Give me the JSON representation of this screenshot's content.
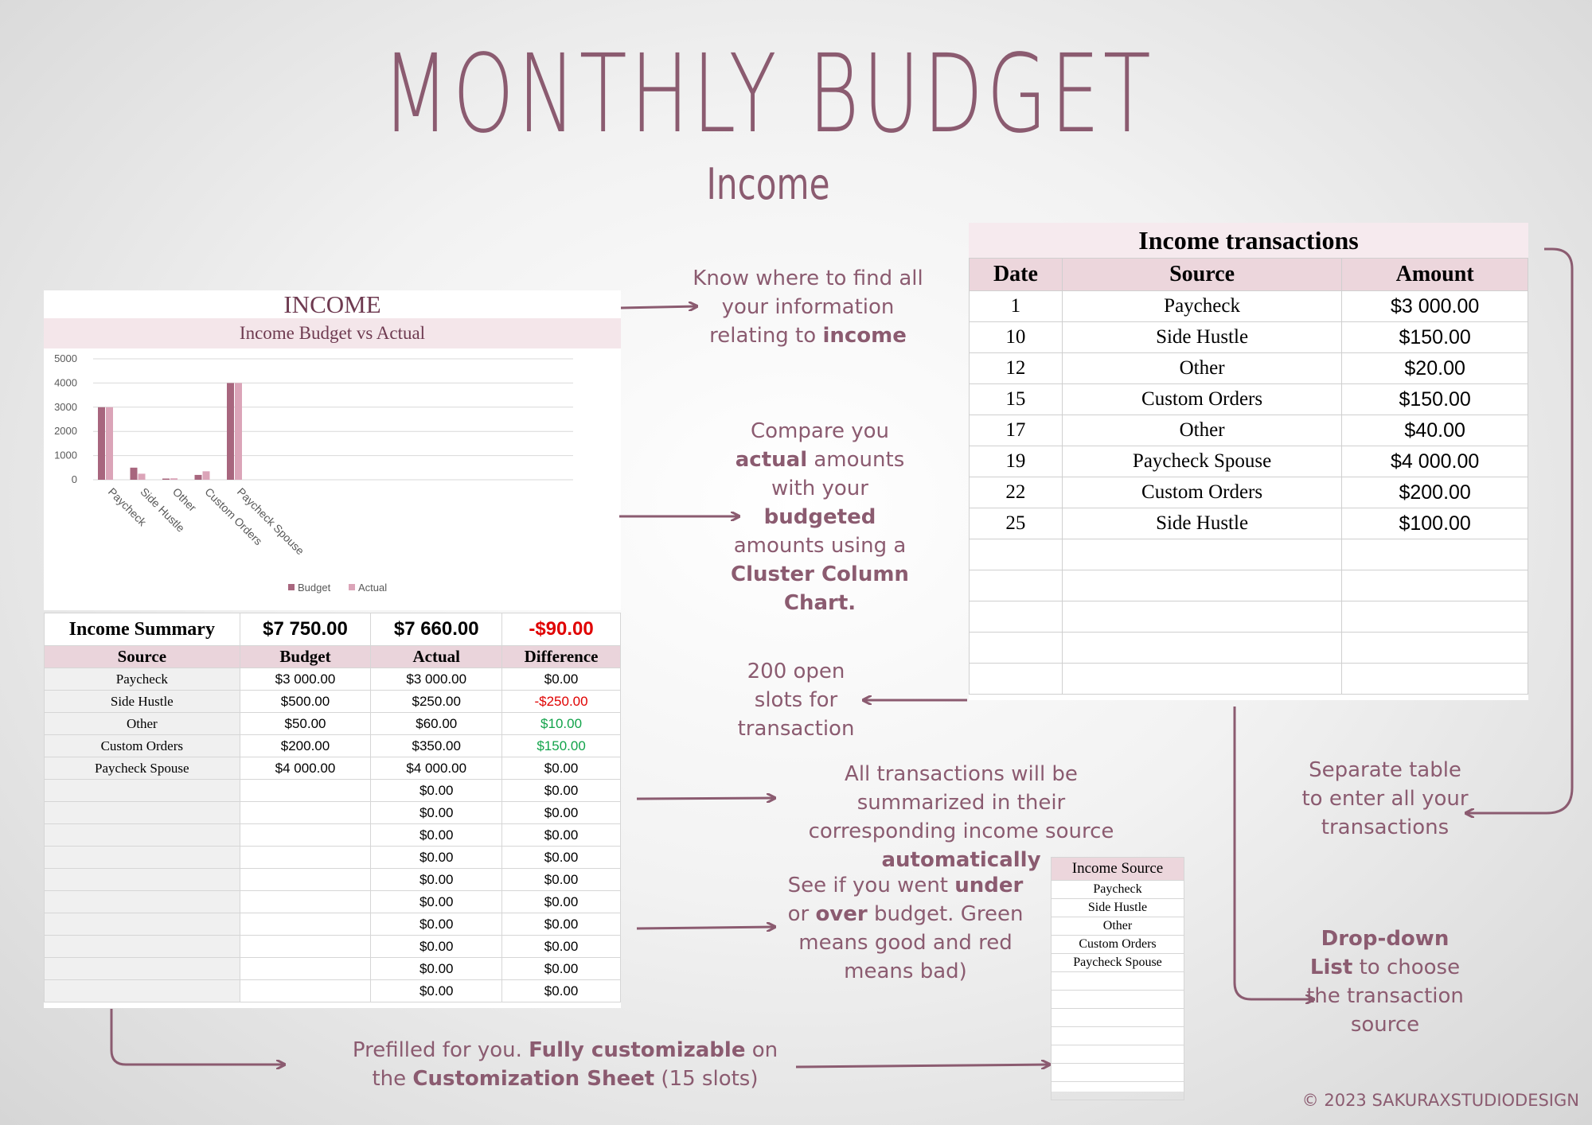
{
  "title": "MONTHLY BUDGET",
  "subtitle": "Income",
  "income_panel": {
    "heading": "INCOME",
    "chart_title": "Income Budget vs Actual"
  },
  "chart_data": {
    "type": "bar",
    "title": "Income Budget vs Actual",
    "categories": [
      "Paycheck",
      "Side Hustle",
      "Other",
      "Custom Orders",
      "Paycheck Spouse"
    ],
    "series": [
      {
        "name": "Budget",
        "values": [
          3000,
          500,
          50,
          200,
          4000
        ],
        "color": "#a8667e"
      },
      {
        "name": "Actual",
        "values": [
          3000,
          250,
          60,
          350,
          4000
        ],
        "color": "#dba4b8"
      }
    ],
    "yticks": [
      "0",
      "1000",
      "2000",
      "3000",
      "4000",
      "5000"
    ],
    "ylim": [
      0,
      5000
    ],
    "grid": true,
    "legend": "bottom"
  },
  "summary": {
    "label": "Income Summary",
    "budget_total": "$7 750.00",
    "actual_total": "$7 660.00",
    "difference_total": "-$90.00",
    "headers": [
      "Source",
      "Budget",
      "Actual",
      "Difference"
    ],
    "rows": [
      {
        "source": "Paycheck",
        "budget": "$3 000.00",
        "actual": "$3 000.00",
        "diff": "$0.00",
        "tone": "neutral"
      },
      {
        "source": "Side Hustle",
        "budget": "$500.00",
        "actual": "$250.00",
        "diff": "-$250.00",
        "tone": "red"
      },
      {
        "source": "Other",
        "budget": "$50.00",
        "actual": "$60.00",
        "diff": "$10.00",
        "tone": "green"
      },
      {
        "source": "Custom Orders",
        "budget": "$200.00",
        "actual": "$350.00",
        "diff": "$150.00",
        "tone": "green"
      },
      {
        "source": "Paycheck Spouse",
        "budget": "$4 000.00",
        "actual": "$4 000.00",
        "diff": "$0.00",
        "tone": "neutral"
      },
      {
        "source": "",
        "budget": "",
        "actual": "$0.00",
        "diff": "$0.00",
        "tone": "neutral"
      },
      {
        "source": "",
        "budget": "",
        "actual": "$0.00",
        "diff": "$0.00",
        "tone": "neutral"
      },
      {
        "source": "",
        "budget": "",
        "actual": "$0.00",
        "diff": "$0.00",
        "tone": "neutral"
      },
      {
        "source": "",
        "budget": "",
        "actual": "$0.00",
        "diff": "$0.00",
        "tone": "neutral"
      },
      {
        "source": "",
        "budget": "",
        "actual": "$0.00",
        "diff": "$0.00",
        "tone": "neutral"
      },
      {
        "source": "",
        "budget": "",
        "actual": "$0.00",
        "diff": "$0.00",
        "tone": "neutral"
      },
      {
        "source": "",
        "budget": "",
        "actual": "$0.00",
        "diff": "$0.00",
        "tone": "neutral"
      },
      {
        "source": "",
        "budget": "",
        "actual": "$0.00",
        "diff": "$0.00",
        "tone": "neutral"
      },
      {
        "source": "",
        "budget": "",
        "actual": "$0.00",
        "diff": "$0.00",
        "tone": "neutral"
      },
      {
        "source": "",
        "budget": "",
        "actual": "$0.00",
        "diff": "$0.00",
        "tone": "neutral"
      }
    ]
  },
  "transactions": {
    "title": "Income transactions",
    "headers": [
      "Date",
      "Source",
      "Amount"
    ],
    "rows": [
      {
        "date": "1",
        "source": "Paycheck",
        "amount": "$3 000.00"
      },
      {
        "date": "10",
        "source": "Side Hustle",
        "amount": "$150.00"
      },
      {
        "date": "12",
        "source": "Other",
        "amount": "$20.00"
      },
      {
        "date": "15",
        "source": "Custom Orders",
        "amount": "$150.00"
      },
      {
        "date": "17",
        "source": "Other",
        "amount": "$40.00"
      },
      {
        "date": "19",
        "source": "Paycheck Spouse",
        "amount": "$4 000.00"
      },
      {
        "date": "22",
        "source": "Custom Orders",
        "amount": "$200.00"
      },
      {
        "date": "25",
        "source": "Side Hustle",
        "amount": "$100.00"
      },
      {
        "date": "",
        "source": "",
        "amount": ""
      },
      {
        "date": "",
        "source": "",
        "amount": ""
      },
      {
        "date": "",
        "source": "",
        "amount": ""
      },
      {
        "date": "",
        "source": "",
        "amount": ""
      },
      {
        "date": "",
        "source": "",
        "amount": ""
      }
    ]
  },
  "source_list": {
    "header": "Income Source",
    "items": [
      "Paycheck",
      "Side Hustle",
      "Other",
      "Custom Orders",
      "Paycheck Spouse",
      "",
      "",
      "",
      "",
      "",
      "",
      ""
    ]
  },
  "notes": {
    "find_info": {
      "pre": "Know where to find all your information relating to ",
      "bold": "income"
    },
    "compare": {
      "p1": "Compare you ",
      "b1": "actual",
      "p2": " amounts with your ",
      "b2": "budgeted",
      "p3": " amounts using a ",
      "b3": "Cluster Column Chart."
    },
    "open_slots": "200 open slots for transaction",
    "summarized": {
      "pre": "All transactions will be summarized in their corresponding income source ",
      "bold": "automatically"
    },
    "under_over": {
      "p1": "See if you went ",
      "b1": "under",
      "p2": " or ",
      "b2": "over",
      "p3": " budget. Green means good and red means bad)"
    },
    "prefilled": {
      "p1": "Prefilled for you. ",
      "b1": "Fully customizable",
      "p2": " on the ",
      "b2": "Customization Sheet",
      "p3": " (15 slots)"
    },
    "separate": "Separate table to enter all your transactions",
    "dropdown": {
      "b1": "Drop-down List",
      "p1": " to choose the transaction source"
    }
  },
  "copyright": "© 2023 SAKURAXSTUDIODESIGN",
  "colors": {
    "accent": "#8b5b70",
    "pink_header": "#ecd6dc",
    "red": "#e00000",
    "green": "#12a34a"
  }
}
